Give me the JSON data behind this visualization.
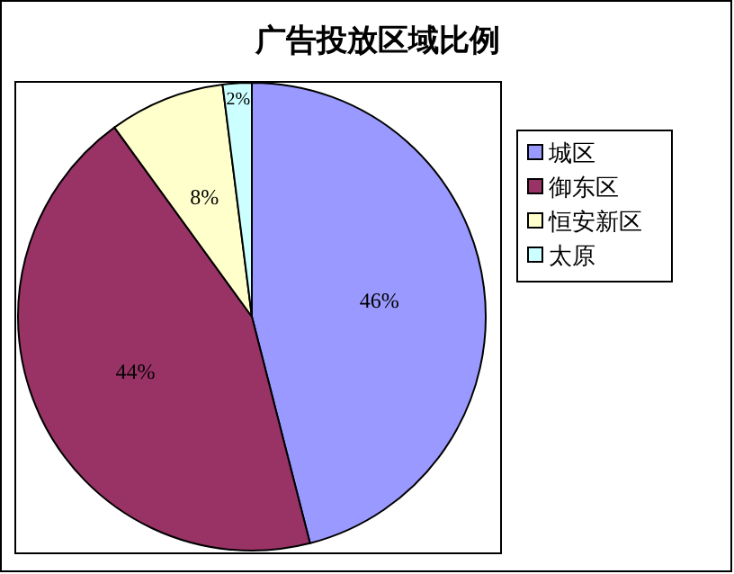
{
  "chart_data": {
    "type": "pie",
    "title": "广告投放区域比例",
    "categories": [
      "城区",
      "御东区",
      "恒安新区",
      "太原"
    ],
    "values": [
      46,
      44,
      8,
      2
    ],
    "colors": [
      "#9999ff",
      "#993366",
      "#ffffcc",
      "#ccffff"
    ],
    "value_labels": [
      "46%",
      "44%",
      "8%",
      "2%"
    ],
    "legend": "right"
  }
}
